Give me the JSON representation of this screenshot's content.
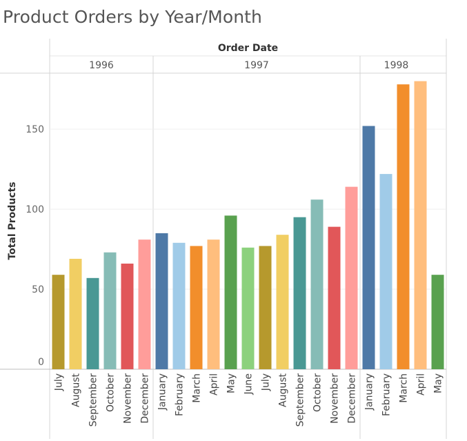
{
  "page": {
    "title": "Product Orders by Year/Month"
  },
  "chart_data": {
    "type": "bar",
    "title": "Product Orders by Year/Month",
    "header_title": "Order Date",
    "ylabel": "Total Products",
    "ylim": [
      0,
      185
    ],
    "yticks": [
      0,
      50,
      100,
      150
    ],
    "grid": true,
    "years": [
      {
        "year": "1996",
        "months": [
          "July",
          "August",
          "September",
          "October",
          "November",
          "December"
        ]
      },
      {
        "year": "1997",
        "months": [
          "January",
          "February",
          "March",
          "April",
          "May",
          "June",
          "July",
          "August",
          "September",
          "October",
          "November",
          "December"
        ]
      },
      {
        "year": "1998",
        "months": [
          "January",
          "February",
          "March",
          "April",
          "May"
        ]
      }
    ],
    "values": [
      59,
      69,
      57,
      73,
      66,
      81,
      85,
      79,
      77,
      81,
      96,
      76,
      77,
      84,
      95,
      106,
      89,
      114,
      152,
      122,
      178,
      180,
      59
    ],
    "colors": {
      "January": "#4e79a7",
      "February": "#a0cbe8",
      "March": "#f28e2b",
      "April": "#ffbe7d",
      "May": "#59a14f",
      "June": "#8cd17d",
      "July": "#b6992d",
      "August": "#f1ce63",
      "September": "#499894",
      "October": "#86bcb6",
      "November": "#e15759",
      "December": "#ff9d9a"
    }
  }
}
